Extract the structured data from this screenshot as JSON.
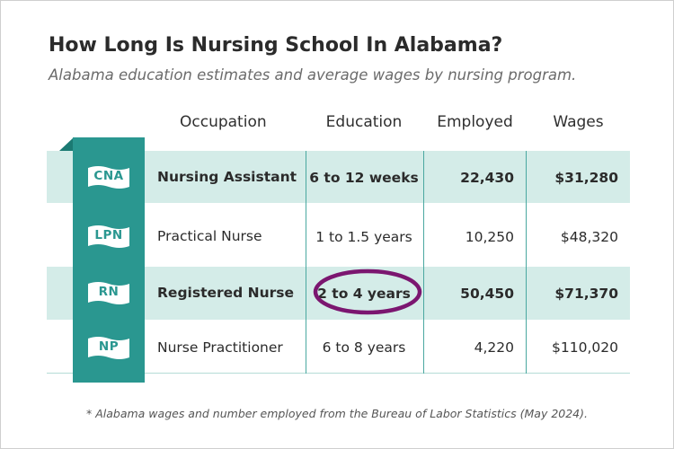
{
  "title": "How Long Is Nursing School In Alabama?",
  "subtitle": "Alabama education estimates and average wages by nursing program.",
  "footnote": "* Alabama wages and number employed from the Bureau of Labor Statistics (May 2024).",
  "colors": {
    "teal": "#2a9790",
    "band": "#d4ece8",
    "highlight_ring": "#7b1670"
  },
  "chart_data": {
    "type": "table",
    "columns": [
      "Occupation",
      "Education",
      "Employed",
      "Wages"
    ],
    "rows": [
      {
        "abbr": "CNA",
        "occupation": "Nursing Assistant",
        "education": "6 to 12 weeks",
        "employed": "22,430",
        "wages": "$31,280",
        "emphasized": true
      },
      {
        "abbr": "LPN",
        "occupation": "Practical Nurse",
        "education": "1 to 1.5 years",
        "employed": "10,250",
        "wages": "$48,320",
        "emphasized": false
      },
      {
        "abbr": "RN",
        "occupation": "Registered Nurse",
        "education": "2 to 4 years",
        "employed": "50,450",
        "wages": "$71,370",
        "emphasized": true,
        "circled": "education"
      },
      {
        "abbr": "NP",
        "occupation": "Nurse Practitioner",
        "education": "6 to 8 years",
        "employed": "4,220",
        "wages": "$110,020",
        "emphasized": false
      }
    ]
  }
}
